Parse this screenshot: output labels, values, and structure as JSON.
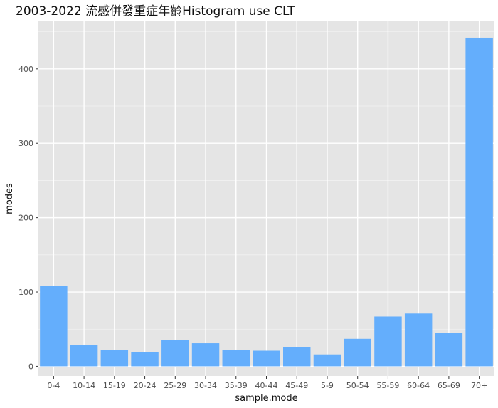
{
  "chart_data": {
    "type": "bar",
    "title": "2003-2022 流感併發重症年齡Histogram use CLT",
    "xlabel": "sample.mode",
    "ylabel": "modes",
    "categories": [
      "0-4",
      "10-14",
      "15-19",
      "20-24",
      "25-29",
      "30-34",
      "35-39",
      "40-44",
      "45-49",
      "5-9",
      "50-54",
      "55-59",
      "60-64",
      "65-69",
      "70+"
    ],
    "values": [
      108,
      29,
      22,
      19,
      35,
      31,
      22,
      21,
      26,
      16,
      37,
      67,
      71,
      45,
      442
    ],
    "ylim": [
      -13,
      464
    ],
    "yticks": [
      0,
      100,
      200,
      300,
      400
    ],
    "grid": true,
    "colors": {
      "bar": "#64AEFC",
      "panel": "#E5E5E5",
      "grid_major": "#FFFFFF",
      "grid_minor": "#F2F2F2"
    }
  }
}
